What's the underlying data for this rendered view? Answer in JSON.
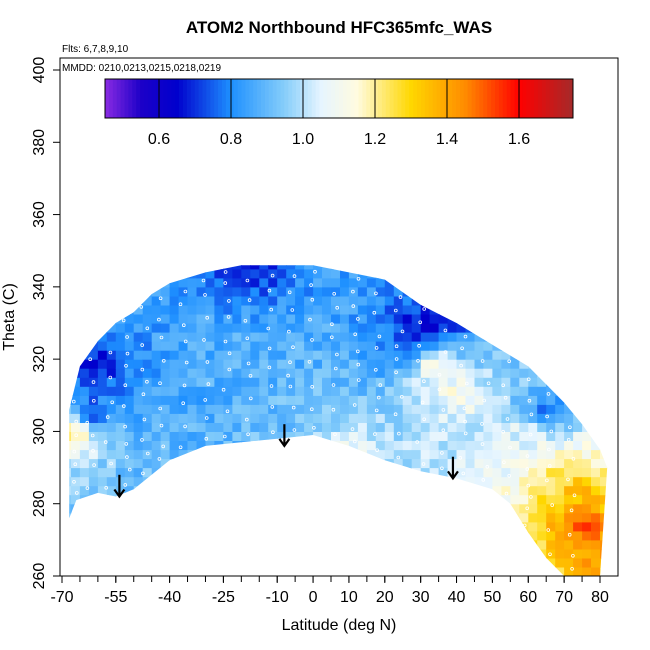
{
  "chart_data": {
    "type": "heatmap",
    "title": "ATOM2 Northbound HFC365mfc_WAS",
    "annotations": [
      "Flts: 6,7,8,9,10",
      "MMDD: 0210,0213,0215,0218,0219"
    ],
    "xlabel": "Latitude (deg N)",
    "ylabel": "Theta (C)",
    "xlim": [
      -70,
      80
    ],
    "ylim": [
      260,
      400
    ],
    "x_ticks": [
      -70,
      -55,
      -40,
      -25,
      -10,
      0,
      10,
      20,
      30,
      40,
      50,
      60,
      70,
      80
    ],
    "x_tick_labels": [
      "-70",
      "-55",
      "-40",
      "-25",
      "-10",
      "0",
      "10",
      "20",
      "30",
      "40",
      "50",
      "60",
      "70",
      "80"
    ],
    "y_ticks": [
      260,
      280,
      300,
      320,
      340,
      360,
      380,
      400
    ],
    "y_tick_labels": [
      "260",
      "280",
      "300",
      "320",
      "340",
      "360",
      "380",
      "400"
    ],
    "colorbar": {
      "range": [
        0.45,
        1.75
      ],
      "ticks": [
        0.6,
        0.8,
        1.0,
        1.2,
        1.4,
        1.6
      ],
      "tick_labels": [
        "0.6",
        "0.8",
        "1.0",
        "1.2",
        "1.4",
        "1.6"
      ],
      "stops": [
        {
          "value": 0.45,
          "color": "#8a2be2"
        },
        {
          "value": 0.55,
          "color": "#1c00c8"
        },
        {
          "value": 0.65,
          "color": "#0000cd"
        },
        {
          "value": 0.8,
          "color": "#1e90ff"
        },
        {
          "value": 0.95,
          "color": "#87cefa"
        },
        {
          "value": 1.05,
          "color": "#e6f5ff"
        },
        {
          "value": 1.15,
          "color": "#fffbe0"
        },
        {
          "value": 1.3,
          "color": "#ffd700"
        },
        {
          "value": 1.45,
          "color": "#ff8c00"
        },
        {
          "value": 1.6,
          "color": "#ff0000"
        },
        {
          "value": 1.75,
          "color": "#a52a2a"
        }
      ]
    },
    "data_envelope": {
      "lower_theta": [
        {
          "lat": -68,
          "theta": 276
        },
        {
          "lat": -66,
          "theta": 281
        },
        {
          "lat": -60,
          "theta": 283
        },
        {
          "lat": -55,
          "theta": 282
        },
        {
          "lat": -50,
          "theta": 284
        },
        {
          "lat": -40,
          "theta": 292
        },
        {
          "lat": -30,
          "theta": 296
        },
        {
          "lat": -20,
          "theta": 297
        },
        {
          "lat": -10,
          "theta": 298
        },
        {
          "lat": 0,
          "theta": 299
        },
        {
          "lat": 10,
          "theta": 296
        },
        {
          "lat": 20,
          "theta": 292
        },
        {
          "lat": 30,
          "theta": 289
        },
        {
          "lat": 40,
          "theta": 287
        },
        {
          "lat": 50,
          "theta": 284
        },
        {
          "lat": 55,
          "theta": 280
        },
        {
          "lat": 60,
          "theta": 272
        },
        {
          "lat": 65,
          "theta": 265
        },
        {
          "lat": 70,
          "theta": 260
        },
        {
          "lat": 80,
          "theta": 260
        }
      ],
      "upper_theta": [
        {
          "lat": -68,
          "theta": 306
        },
        {
          "lat": -65,
          "theta": 318
        },
        {
          "lat": -60,
          "theta": 325
        },
        {
          "lat": -55,
          "theta": 330
        },
        {
          "lat": -50,
          "theta": 333
        },
        {
          "lat": -45,
          "theta": 338
        },
        {
          "lat": -40,
          "theta": 341
        },
        {
          "lat": -30,
          "theta": 344
        },
        {
          "lat": -20,
          "theta": 346
        },
        {
          "lat": -10,
          "theta": 346
        },
        {
          "lat": 0,
          "theta": 346
        },
        {
          "lat": 10,
          "theta": 344
        },
        {
          "lat": 20,
          "theta": 342
        },
        {
          "lat": 30,
          "theta": 335
        },
        {
          "lat": 40,
          "theta": 330
        },
        {
          "lat": 50,
          "theta": 324
        },
        {
          "lat": 60,
          "theta": 318
        },
        {
          "lat": 65,
          "theta": 313
        },
        {
          "lat": 70,
          "theta": 308
        },
        {
          "lat": 75,
          "theta": 302
        },
        {
          "lat": 80,
          "theta": 295
        },
        {
          "lat": 82,
          "theta": 290
        }
      ]
    },
    "features": [
      {
        "lat": 30,
        "theta": 328,
        "value": 0.6
      },
      {
        "lat": 35,
        "theta": 330,
        "value": 0.62
      },
      {
        "lat": -60,
        "theta": 318,
        "value": 0.65
      },
      {
        "lat": -62,
        "theta": 305,
        "value": 0.68
      },
      {
        "lat": -18,
        "theta": 345,
        "value": 0.65
      },
      {
        "lat": 25,
        "theta": 320,
        "value": 0.75
      },
      {
        "lat": 65,
        "theta": 305,
        "value": 0.7
      },
      {
        "lat": 75,
        "theta": 274,
        "value": 1.6
      },
      {
        "lat": 75,
        "theta": 283,
        "value": 1.4
      },
      {
        "lat": 80,
        "theta": 265,
        "value": 1.45
      },
      {
        "lat": 70,
        "theta": 290,
        "value": 1.25
      },
      {
        "lat": -67,
        "theta": 300,
        "value": 1.3
      },
      {
        "lat": 40,
        "theta": 310,
        "value": 1.15
      },
      {
        "lat": 60,
        "theta": 300,
        "value": 1.1
      },
      {
        "lat": 33,
        "theta": 318,
        "value": 1.25
      },
      {
        "lat": 10,
        "theta": 295,
        "value": 1.1
      },
      {
        "lat": -40,
        "theta": 310,
        "value": 0.85
      },
      {
        "lat": -20,
        "theta": 320,
        "value": 0.88
      },
      {
        "lat": 0,
        "theta": 310,
        "value": 0.9
      }
    ],
    "arrows": [
      {
        "lat": -54,
        "theta_top": 288,
        "theta_tip": 282
      },
      {
        "lat": -8,
        "theta_top": 302,
        "theta_tip": 296
      },
      {
        "lat": 39,
        "theta_top": 293,
        "theta_tip": 287
      }
    ],
    "grid": false
  }
}
